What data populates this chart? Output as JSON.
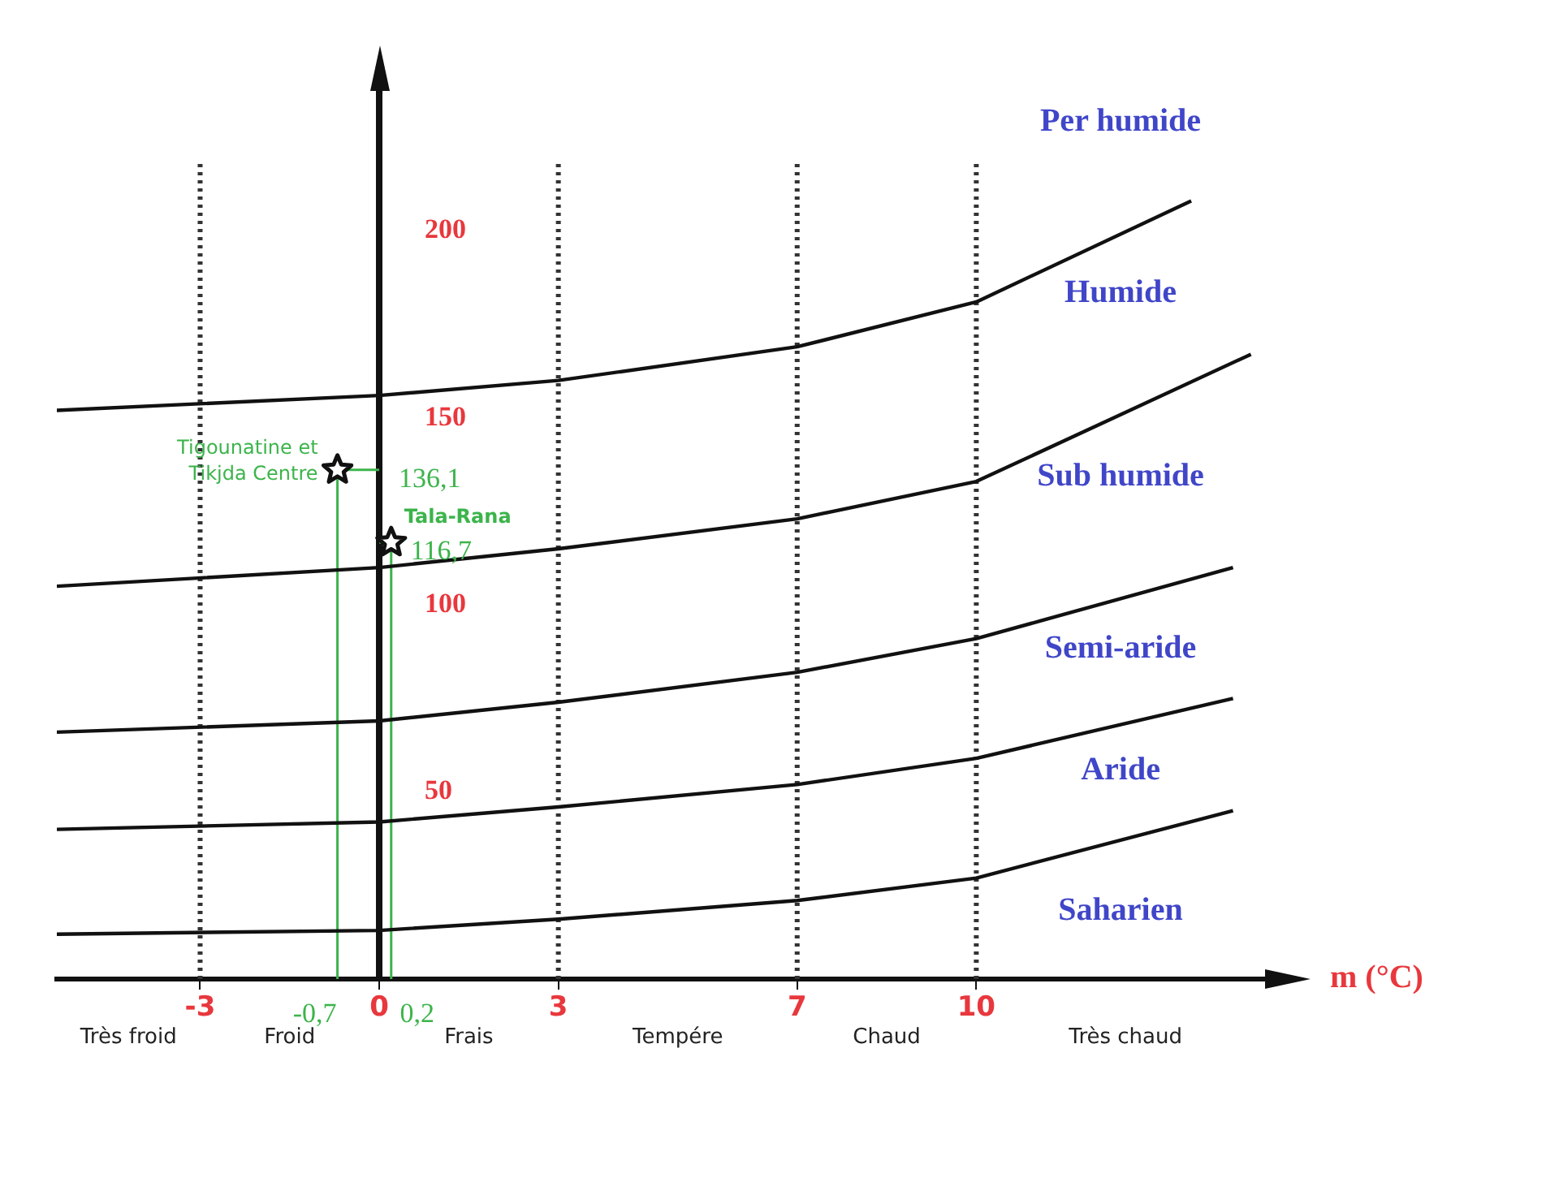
{
  "chart_data": {
    "type": "line",
    "xlabel": "m (°C)",
    "xlim": [
      -5.4,
      15
    ],
    "ylim": [
      0,
      240
    ],
    "xticks": [
      -3,
      0,
      3,
      7,
      10
    ],
    "yticks": [
      50,
      100,
      150,
      200
    ],
    "grid": false,
    "legend": false,
    "marker": "none",
    "line_style": "solid",
    "series": [
      {
        "type": "line",
        "color": "#111111",
        "x": [
          -5.4,
          0,
          3,
          7,
          10,
          13.6
        ],
        "values": [
          152,
          156,
          160,
          169,
          181,
          208
        ]
      },
      {
        "type": "line",
        "color": "#111111",
        "x": [
          -5.4,
          0,
          3,
          7,
          10,
          14.6
        ],
        "values": [
          105,
          110,
          115,
          123,
          133,
          167
        ]
      },
      {
        "type": "line",
        "color": "#111111",
        "x": [
          -5.4,
          0,
          3,
          7,
          10,
          14.3
        ],
        "values": [
          66,
          69,
          74,
          82,
          91,
          110
        ]
      },
      {
        "type": "line",
        "color": "#111111",
        "x": [
          -5.4,
          0,
          3,
          7,
          10,
          14.3
        ],
        "values": [
          40,
          42,
          46,
          52,
          59,
          75
        ]
      },
      {
        "type": "line",
        "color": "#111111",
        "x": [
          -5.4,
          0,
          3,
          7,
          10,
          14.3
        ],
        "values": [
          12,
          13,
          16,
          21,
          27,
          45
        ]
      },
      {
        "type": "scatter",
        "name": "Tigounatine et Tikjda Centre",
        "marker": "star",
        "color": "#111111",
        "x": [
          -0.7
        ],
        "values": [
          136.1
        ],
        "value_labels": [
          "136,1"
        ]
      },
      {
        "type": "scatter",
        "name": "Tala-Rana",
        "marker": "star",
        "color": "#111111",
        "x": [
          0.2
        ],
        "values": [
          116.7
        ],
        "value_labels": [
          "116,7"
        ]
      }
    ],
    "ref_lines": [
      {
        "axis": "x",
        "value": -3,
        "line_style": "dotted",
        "color": "#333333"
      },
      {
        "axis": "x",
        "value": 3,
        "line_style": "dotted",
        "color": "#333333"
      },
      {
        "axis": "x",
        "value": 7,
        "line_style": "dotted",
        "color": "#333333"
      },
      {
        "axis": "x",
        "value": 10,
        "line_style": "dotted",
        "color": "#333333"
      }
    ],
    "annotations": [
      "Per humide",
      "Humide",
      "Sub humide",
      "Semi-aride",
      "Aride",
      "Saharien",
      "Très froid",
      "Froid",
      "Frais",
      "Tempére",
      "Chaud",
      "Très chaud",
      {
        "text": "-0,7",
        "x": -0.7,
        "y": 136.1
      },
      {
        "text": "0,2",
        "x": 0.2,
        "y": 116.7
      }
    ]
  }
}
